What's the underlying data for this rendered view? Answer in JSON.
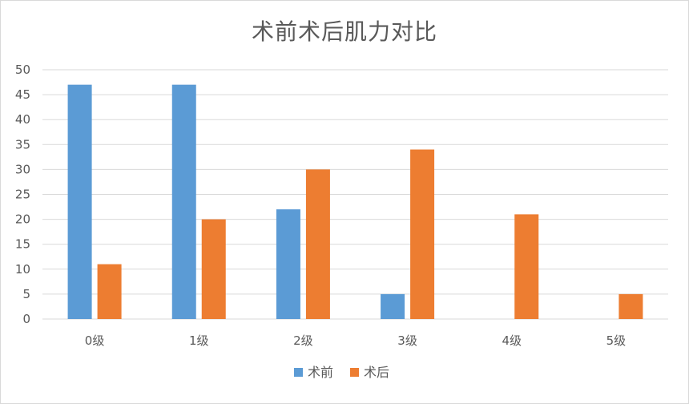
{
  "chart_data": {
    "type": "bar",
    "title": "术前术后肌力对比",
    "categories": [
      "0级",
      "1级",
      "2级",
      "3级",
      "4级",
      "5级"
    ],
    "series": [
      {
        "name": "术前",
        "color": "#5b9bd5",
        "values": [
          47,
          47,
          22,
          5,
          0,
          0
        ]
      },
      {
        "name": "术后",
        "color": "#ed7d31",
        "values": [
          11,
          20,
          30,
          34,
          21,
          5
        ]
      }
    ],
    "ylim": [
      0,
      50
    ],
    "yticks": [
      0,
      5,
      10,
      15,
      20,
      25,
      30,
      35,
      40,
      45,
      50
    ],
    "grid": true,
    "legend_position": "bottom"
  }
}
